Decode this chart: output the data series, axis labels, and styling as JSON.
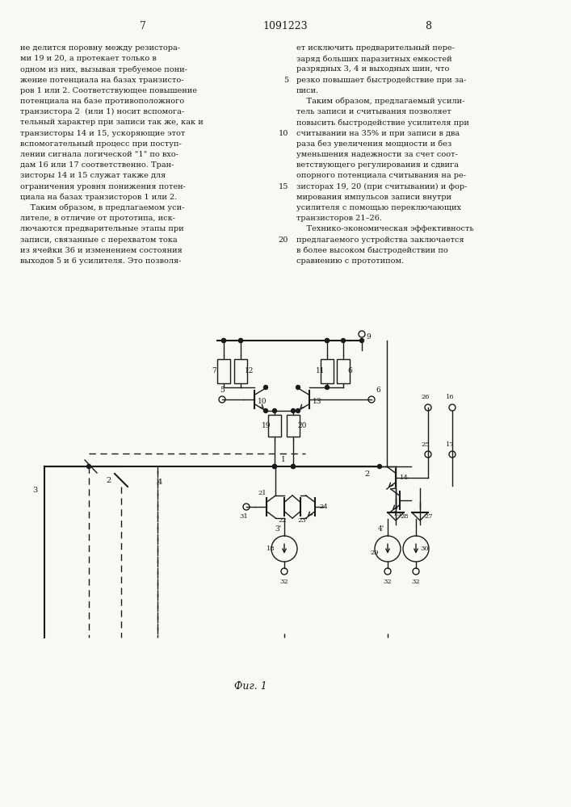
{
  "page_number_left": "7",
  "patent_number": "1091223",
  "page_number_right": "8",
  "background_color": "#f8f8f5",
  "text_color": "#1a1a1a",
  "left_column_text": [
    "не делится поровну между резистора-",
    "ми 19 и 20, а протекает только в",
    "одном из них, вызывая требуемое пони-",
    "жение потенциала на базах транзисто-",
    "ров 1 или 2. Соответствующее повышение",
    "потенциала на базе противоположного",
    "транзистора 2  (или 1) носит вспомога-",
    "тельный характер при записи так же, как и",
    "транзисторы 14 и 15, ускоряющие этот",
    "вспомогательный процесс при поступ-",
    "лении сигнала логической \"1\" по вхо-",
    "дам 16 или 17 соответственно. Тран-",
    "зисторы 14 и 15 служат также для",
    "ограничения уровня понижения потен-",
    "циала на базах транзисторов 1 или 2.",
    "    Таким образом, в предлагаемом уси-",
    "лителе, в отличие от прототипа, иск-",
    "лючаются предварительные этапы при",
    "записи, связанные с перехватом тока",
    "из ячейки 36 и изменением состояния",
    "выходов 5 и 6 усилителя. Это позволя-"
  ],
  "right_column_text": [
    "ет исключить предварительный пере-",
    "заряд больших паразитных емкостей",
    "разрядных 3, 4 и выходных шин, что",
    "резко повышает быстродействие при за-",
    "писи.",
    "    Таким образом, предлагаемый усили-",
    "тель записи и считывания позволяет",
    "повысить быстродействие усилителя при",
    "считывании на 35% и при записи в два",
    "раза без увеличения мощности и без",
    "уменьшения надежности за счет соот-",
    "ветствующего регулирования и сдвига",
    "опорного потенциала считывания на ре-",
    "зисторах 19, 20 (при считывании) и фор-",
    "мирования импульсов записи внутри",
    "усилителя с помощью переключающих",
    "транзисторов 21–26.",
    "    Технико-экономическая эффективность",
    "предлагаемого устройства заключается",
    "в более высоком быстродействии по",
    "сравнению с прототипом."
  ],
  "line_num_rows": {
    "3": 4,
    "8": 9,
    "13": 14,
    "18": 19
  },
  "fig_caption": "Фиг. 1"
}
